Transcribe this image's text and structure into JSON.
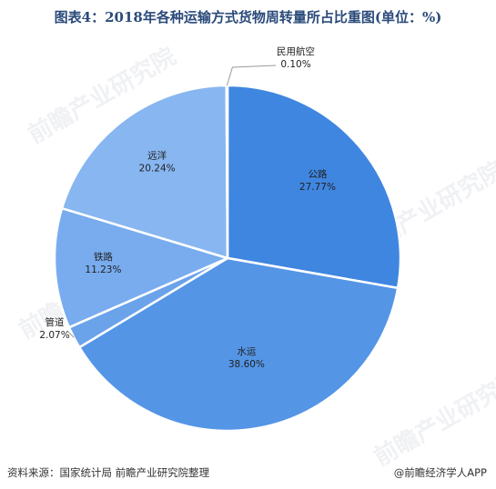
{
  "title": "图表4：2018年各种运输方式货物周转量所占比重图(单位：%)",
  "source": "资料来源：国家统计局 前瞻产业研究院整理",
  "brand": "@前瞻经济学人APP",
  "watermark": "前瞻产业研究院",
  "chart_data": {
    "type": "pie",
    "title": "图表4：2018年各种运输方式货物周转量所占比重图(单位：%)",
    "start": "12 o'clock, clockwise",
    "slices": [
      {
        "label": "公路",
        "value": 27.77,
        "value_label": "27.77%",
        "color": "#3f86e0"
      },
      {
        "label": "水运",
        "value": 38.6,
        "value_label": "38.60%",
        "color": "#5495e6"
      },
      {
        "label": "管道",
        "value": 2.07,
        "value_label": "2.07%",
        "color": "#6aa3ea"
      },
      {
        "label": "铁路",
        "value": 11.23,
        "value_label": "11.23%",
        "color": "#78acee"
      },
      {
        "label": "远洋",
        "value": 20.24,
        "value_label": "20.24%",
        "color": "#88b6f1"
      },
      {
        "label": "民用航空",
        "value": 0.1,
        "value_label": "0.10%",
        "color": "#9cc3f4"
      }
    ]
  }
}
